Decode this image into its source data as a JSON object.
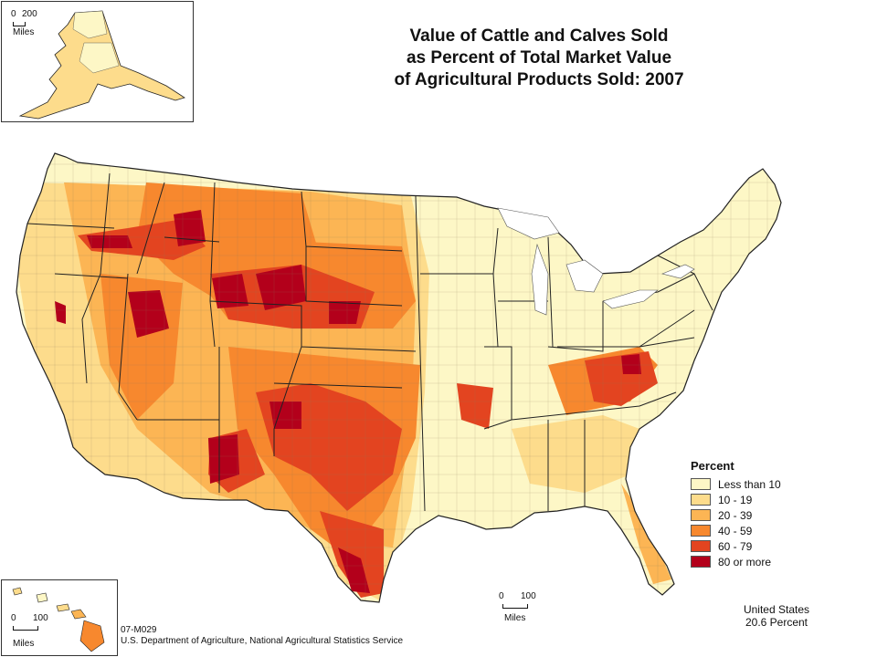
{
  "map": {
    "title_lines": [
      "Value of Cattle and Calves Sold",
      "as Percent of Total Market Value",
      "of Agricultural Products Sold:  2007"
    ],
    "legend": {
      "title": "Percent",
      "items": [
        {
          "label": "Less than 10",
          "color": "#fdf7c6"
        },
        {
          "label": "10 - 19",
          "color": "#fddc8c"
        },
        {
          "label": "20 - 39",
          "color": "#fcb554"
        },
        {
          "label": "40 - 59",
          "color": "#f7882e"
        },
        {
          "label": "60 - 79",
          "color": "#e34420"
        },
        {
          "label": "80 or more",
          "color": "#b3001b"
        }
      ]
    },
    "us_total": {
      "label": "United States",
      "value": "20.6 Percent"
    },
    "source": {
      "code": "07-M029",
      "agency": "U.S. Department of Agriculture, National Agricultural Statistics Service"
    },
    "scales": {
      "alaska": {
        "start": "0",
        "end": "200",
        "units": "Miles"
      },
      "hawaii": {
        "start": "0",
        "end": "100",
        "units": "Miles"
      },
      "conus": {
        "start": "0",
        "end": "100",
        "units": "Miles"
      }
    },
    "colors": {
      "background": "#ffffff",
      "frame": "#6d6d6d",
      "boundary": "#333333"
    }
  }
}
